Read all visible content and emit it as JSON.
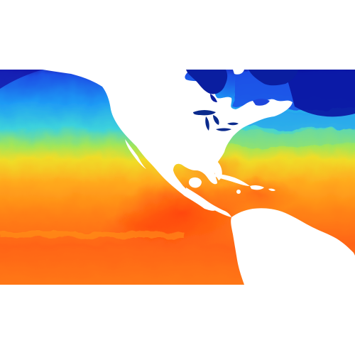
{
  "map": {
    "palette": {
      "background": "#ffffff",
      "land": "#ffffff",
      "lakes": "#0a2a8c",
      "coldest": "#1414a8",
      "cold": "#1e6ef0",
      "cool": "#28c8f0",
      "mild": "#b4e646",
      "warm": "#ffb41e",
      "hot": "#ff6e14",
      "hottest": "#ff3c0a"
    },
    "colormap": "jet",
    "regions": [
      "north-pacific",
      "north-atlantic",
      "gulf-of-mexico",
      "caribbean-sea",
      "hudson-bay",
      "great-lakes",
      "labrador-sea",
      "eastern-tropical-pacific"
    ]
  }
}
